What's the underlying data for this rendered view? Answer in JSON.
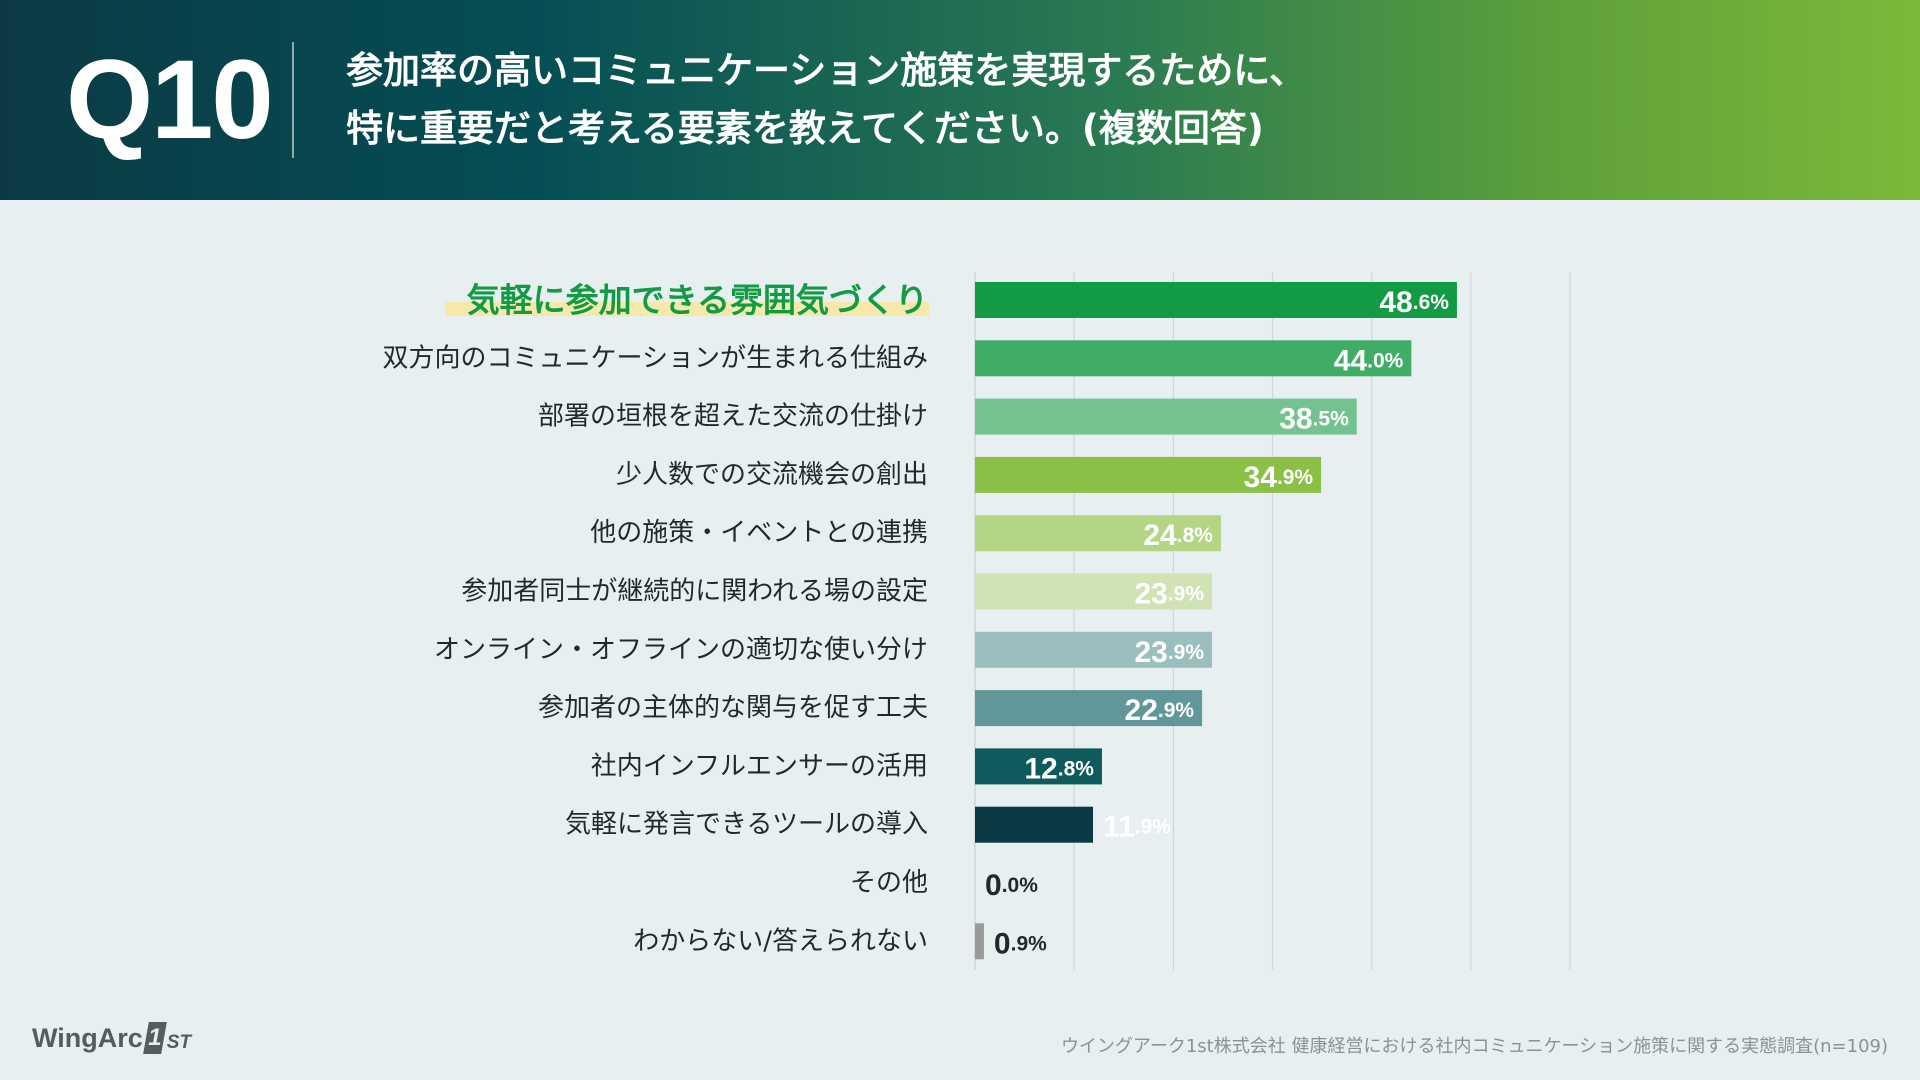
{
  "header": {
    "question_number": "Q10",
    "title_line1": "参加率の高いコミュニケーション施策を実現するために、",
    "title_line2": "特に重要だと考える要素を教えてください。(複数回答)"
  },
  "chart_data": {
    "type": "bar",
    "orientation": "horizontal",
    "title": "参加率の高いコミュニケーション施策を実現するために、特に重要だと考える要素を教えてください。(複数回答)",
    "unit": "%",
    "xlim": [
      0,
      60
    ],
    "grid": true,
    "categories": [
      "気軽に参加できる雰囲気づくり",
      "双方向のコミュニケーションが生まれる仕組み",
      "部署の垣根を超えた交流の仕掛け",
      "少人数での交流機会の創出",
      "他の施策・イベントとの連携",
      "参加者同士が継続的に関われる場の設定",
      "オンライン・オフラインの適切な使い分け",
      "参加者の主体的な関与を促す工夫",
      "社内インフルエンサーの活用",
      "気軽に発言できるツールの導入",
      "その他",
      "わからない/答えられない"
    ],
    "values": [
      48.6,
      44.0,
      38.5,
      34.9,
      24.8,
      23.9,
      23.9,
      22.9,
      12.8,
      11.9,
      0.0,
      0.9
    ],
    "value_labels": [
      "48.6%",
      "44.0%",
      "38.5%",
      "34.9%",
      "24.8%",
      "23.9%",
      "23.9%",
      "22.9%",
      "12.8%",
      "11.9%",
      "0.0%",
      "0.9%"
    ],
    "highlight_index": 0,
    "bar_colors": [
      "#129a44",
      "#3fad66",
      "#74c28f",
      "#8bc046",
      "#b3d585",
      "#cfe3b4",
      "#9bbfbe",
      "#62979a",
      "#0f5a5c",
      "#0b3a44",
      "#9a9a9a",
      "#9a9a9a"
    ],
    "label_colors": [
      "#ffffff",
      "#ffffff",
      "#ffffff",
      "#ffffff",
      "#ffffff",
      "#ffffff",
      "#ffffff",
      "#ffffff",
      "#ffffff",
      "#ffffff",
      "#1f2a2e",
      "#1f2a2e"
    ],
    "highlight_label_color": "#129a44",
    "highlight_marker_color": "#f5e8a8",
    "grid_color": "#cfd6d8"
  },
  "footer": {
    "logo_text": "WingArc",
    "logo_mark": "1",
    "logo_suffix": "ST",
    "source": "ウイングアーク1st株式会社 健康経営における社内コミュニケーション施策に関する実態調査(n=109)"
  }
}
